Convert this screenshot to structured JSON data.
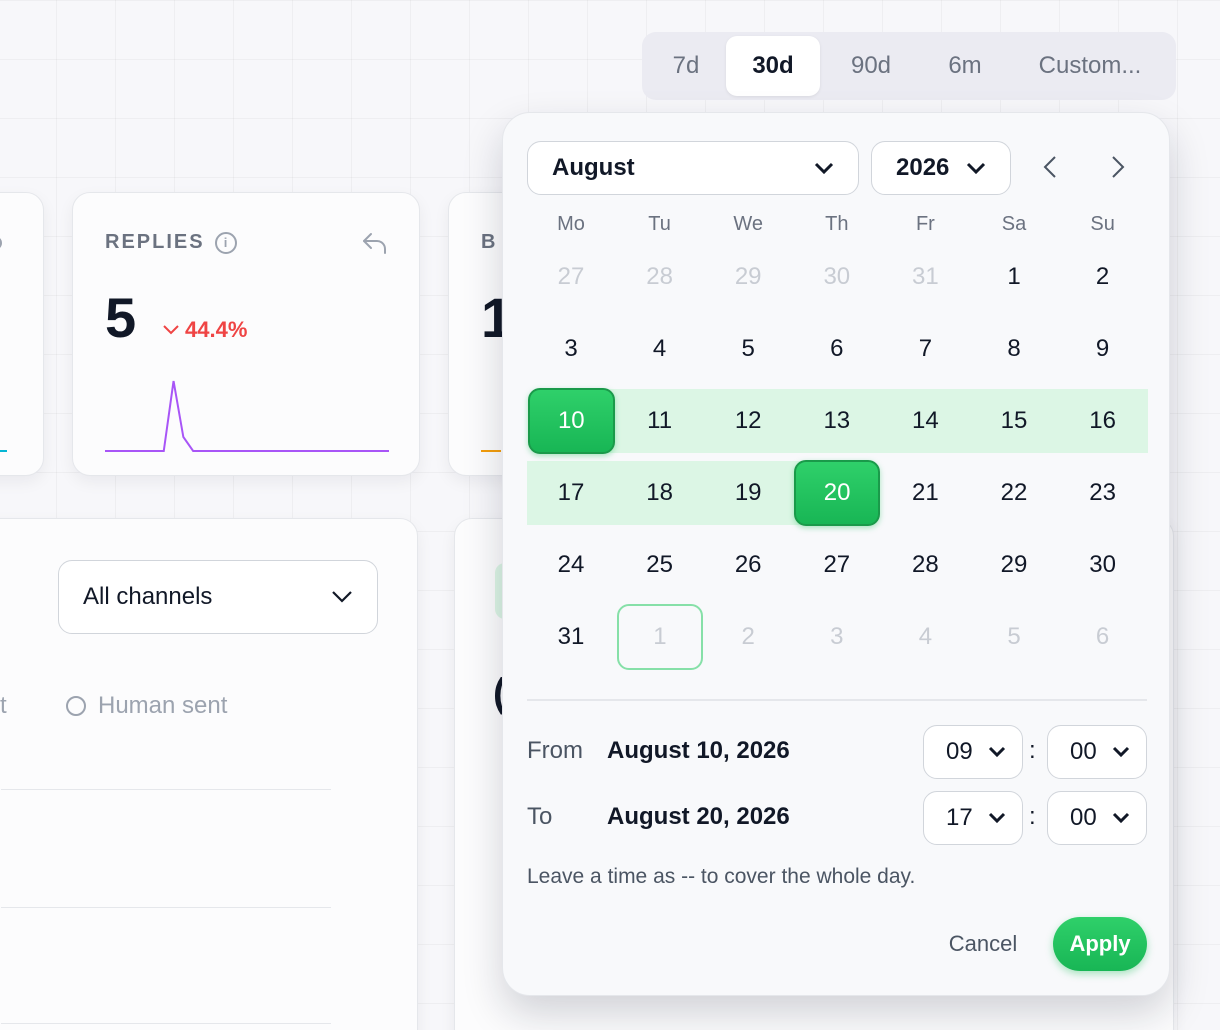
{
  "range_tabs": [
    {
      "label": "7d",
      "active": false
    },
    {
      "label": "30d",
      "active": true
    },
    {
      "label": "90d",
      "active": false
    },
    {
      "label": "6m",
      "active": false
    },
    {
      "label": "Custom...",
      "active": false
    }
  ],
  "replies_card": {
    "title": "REPLIES",
    "info_icon": "i",
    "value": "5",
    "delta": "44.4%"
  },
  "third_card": {
    "title_partial": "B",
    "value_partial": "1"
  },
  "filters": {
    "channel_select": "All channels"
  },
  "legend": {
    "partial_label": "t",
    "human_sent": "Human sent"
  },
  "obscured_card": {
    "value_partial": "("
  },
  "picker": {
    "month": "August",
    "year": "2026",
    "weekdays": [
      "Mo",
      "Tu",
      "We",
      "Th",
      "Fr",
      "Sa",
      "Su"
    ],
    "weeks": [
      [
        {
          "d": "27",
          "s": "muted"
        },
        {
          "d": "28",
          "s": "muted"
        },
        {
          "d": "29",
          "s": "muted"
        },
        {
          "d": "30",
          "s": "muted"
        },
        {
          "d": "31",
          "s": "muted"
        },
        {
          "d": "1",
          "s": ""
        },
        {
          "d": "2",
          "s": ""
        }
      ],
      [
        {
          "d": "3",
          "s": ""
        },
        {
          "d": "4",
          "s": ""
        },
        {
          "d": "5",
          "s": ""
        },
        {
          "d": "6",
          "s": ""
        },
        {
          "d": "7",
          "s": ""
        },
        {
          "d": "8",
          "s": ""
        },
        {
          "d": "9",
          "s": ""
        }
      ],
      [
        {
          "d": "10",
          "s": "start"
        },
        {
          "d": "11",
          "s": "range"
        },
        {
          "d": "12",
          "s": "range"
        },
        {
          "d": "13",
          "s": "range"
        },
        {
          "d": "14",
          "s": "range"
        },
        {
          "d": "15",
          "s": "range"
        },
        {
          "d": "16",
          "s": "range"
        }
      ],
      [
        {
          "d": "17",
          "s": "range"
        },
        {
          "d": "18",
          "s": "range"
        },
        {
          "d": "19",
          "s": "range"
        },
        {
          "d": "20",
          "s": "end"
        },
        {
          "d": "21",
          "s": ""
        },
        {
          "d": "22",
          "s": ""
        },
        {
          "d": "23",
          "s": ""
        }
      ],
      [
        {
          "d": "24",
          "s": ""
        },
        {
          "d": "25",
          "s": ""
        },
        {
          "d": "26",
          "s": ""
        },
        {
          "d": "27",
          "s": ""
        },
        {
          "d": "28",
          "s": ""
        },
        {
          "d": "29",
          "s": ""
        },
        {
          "d": "30",
          "s": ""
        }
      ],
      [
        {
          "d": "31",
          "s": ""
        },
        {
          "d": "1",
          "s": "today-muted"
        },
        {
          "d": "2",
          "s": "muted"
        },
        {
          "d": "3",
          "s": "muted"
        },
        {
          "d": "4",
          "s": "muted"
        },
        {
          "d": "5",
          "s": "muted"
        },
        {
          "d": "6",
          "s": "muted"
        }
      ]
    ],
    "from_label": "From",
    "from_date": "August 10, 2026",
    "from_hour": "09",
    "from_minute": "00",
    "to_label": "To",
    "to_date": "August 20, 2026",
    "to_hour": "17",
    "to_minute": "00",
    "time_separator": ":",
    "hint": "Leave a time as -- to cover the whole day.",
    "cancel": "Cancel",
    "apply": "Apply"
  },
  "colors": {
    "accent_green": "#22c55e",
    "range_bg": "#dcf6e5",
    "delta_red": "#ef4444",
    "spark_purple": "#a855f7"
  },
  "sparkline": [
    0,
    0,
    0,
    0,
    0,
    0,
    0,
    5,
    1,
    0,
    0,
    0,
    0,
    0,
    0,
    0,
    0,
    0,
    0,
    0,
    0,
    0,
    0,
    0,
    0,
    0,
    0,
    0,
    0,
    0
  ]
}
